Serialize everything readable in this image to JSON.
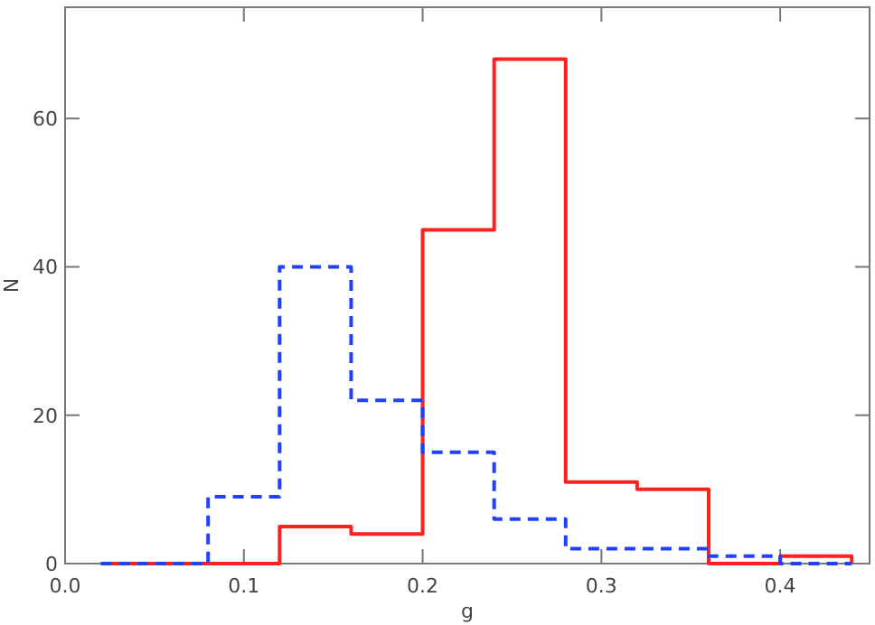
{
  "chart_data": {
    "type": "histogram",
    "xlabel": "g",
    "ylabel": "N",
    "bins": [
      0.02,
      0.04,
      0.08,
      0.12,
      0.16,
      0.2,
      0.24,
      0.28,
      0.32,
      0.36,
      0.4,
      0.44
    ],
    "series": [
      {
        "color": "#ff2020",
        "line_style": "solid",
        "values": [
          0,
          0,
          0,
          5,
          4,
          45,
          68,
          11,
          10,
          0,
          1
        ]
      },
      {
        "color": "#2040ff",
        "line_style": "dashed",
        "values": [
          0,
          0,
          9,
          40,
          22,
          15,
          6,
          2,
          2,
          1,
          0
        ]
      }
    ],
    "xlim": [
      0,
      0.45
    ],
    "xticks": [
      {
        "value": 0,
        "label": "0.0"
      },
      0.1,
      0.2,
      0.3,
      0.4
    ],
    "ylim": [
      0,
      75
    ],
    "yticks": [
      0,
      20,
      40,
      60
    ],
    "grid": false
  }
}
